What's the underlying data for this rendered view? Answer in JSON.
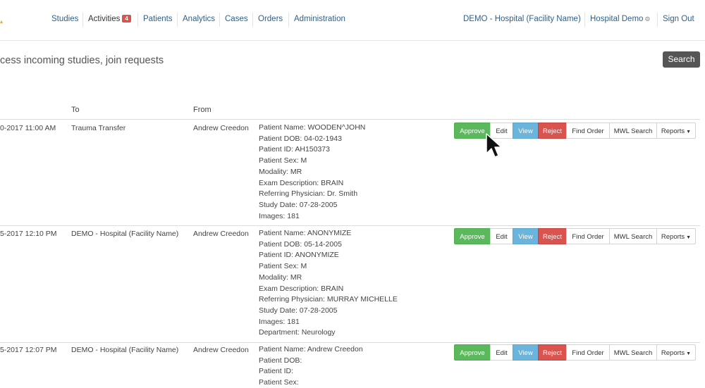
{
  "nav": {
    "studies": "Studies",
    "activities": "Activities",
    "activities_badge": "4",
    "patients": "Patients",
    "analytics": "Analytics",
    "cases": "Cases",
    "orders": "Orders",
    "administration": "Administration",
    "facility": "DEMO - Hospital (Facility Name)",
    "user": "Hospital Demo",
    "user_icon": "gear-icon",
    "signout": "Sign Out"
  },
  "page": {
    "subtitle": "cess incoming studies, join requests",
    "search_label": "Search"
  },
  "table": {
    "headers": {
      "to": "To",
      "from": "From"
    },
    "buttons": {
      "approve": "Approve",
      "edit": "Edit",
      "view": "View",
      "reject": "Reject",
      "find_order": "Find Order",
      "mwl_search": "MWL Search",
      "reports": "Reports"
    },
    "rows": [
      {
        "date": "0-2017 11:00 AM",
        "to": "Trauma Transfer",
        "from": "Andrew Creedon",
        "details": [
          "Patient Name: WOODEN^JOHN",
          "Patient DOB: 04-02-1943",
          "Patient ID: AH150373",
          "Patient Sex: M",
          "Modality: MR",
          "Exam Description: BRAIN",
          "Referring Physician: Dr. Smith",
          "Study Date: 07-28-2005",
          "Images: 181"
        ]
      },
      {
        "date": "5-2017 12:10 PM",
        "to": "DEMO - Hospital (Facility Name)",
        "from": "Andrew Creedon",
        "details": [
          "Patient Name: ANONYMIZE",
          "Patient DOB: 05-14-2005",
          "Patient ID: ANONYMIZE",
          "Patient Sex: M",
          "Modality: MR",
          "Exam Description: BRAIN",
          "Referring Physician: MURRAY MICHELLE",
          "Study Date: 07-28-2005",
          "Images: 181",
          "Department: Neurology"
        ]
      },
      {
        "date": "5-2017 12:07 PM",
        "to": "DEMO - Hospital (Facility Name)",
        "from": "Andrew Creedon",
        "details": [
          "Patient Name: Andrew Creedon",
          "Patient DOB:",
          "Patient ID:",
          "Patient Sex:"
        ]
      }
    ]
  }
}
